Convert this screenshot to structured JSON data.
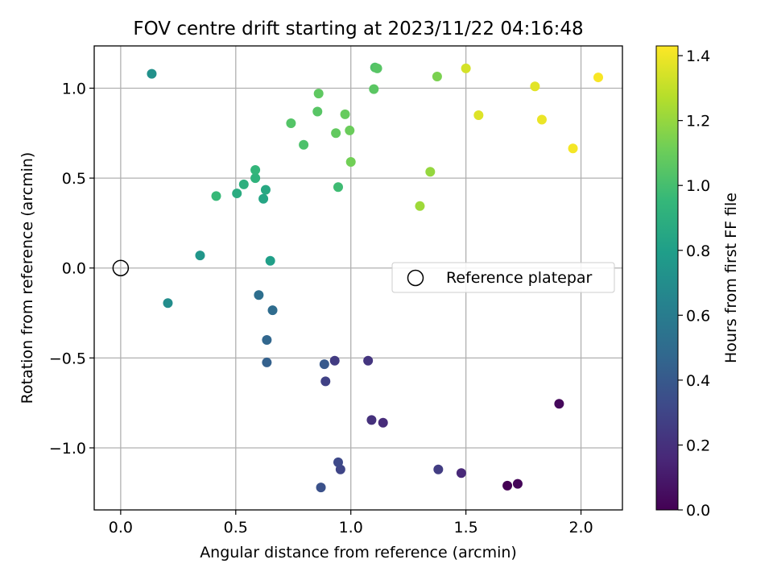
{
  "chart_data": {
    "type": "scatter",
    "title": "FOV centre drift starting at 2023/11/22 04:16:48",
    "xlabel": "Angular distance from reference (arcmin)",
    "ylabel": "Rotation from reference (arcmin)",
    "xlim": [
      -0.115,
      2.18
    ],
    "ylim": [
      -1.345,
      1.235
    ],
    "xticks": [
      0.0,
      0.5,
      1.0,
      1.5,
      2.0
    ],
    "xtick_labels": [
      "0.0",
      "0.5",
      "1.0",
      "1.5",
      "2.0"
    ],
    "yticks": [
      -1.0,
      -0.5,
      0.0,
      0.5,
      1.0
    ],
    "ytick_labels": [
      "−1.0",
      "−0.5",
      "0.0",
      "0.5",
      "1.0"
    ],
    "grid": true,
    "colormap": "viridis",
    "colorbar": {
      "label": "Hours from first FF file",
      "range": [
        0.0,
        1.43
      ],
      "ticks": [
        0.0,
        0.2,
        0.4,
        0.6,
        0.8,
        1.0,
        1.2,
        1.4
      ],
      "tick_labels": [
        "0.0",
        "0.2",
        "0.4",
        "0.6",
        "0.8",
        "1.0",
        "1.2",
        "1.4"
      ]
    },
    "legend": {
      "placement": "right",
      "entries": [
        "Reference platepar"
      ]
    },
    "reference_point": {
      "x": 0.0,
      "y": 0.0
    },
    "series": [
      {
        "points": [
          {
            "x": 1.68,
            "y": -1.21,
            "c": 0.0
          },
          {
            "x": 1.725,
            "y": -1.2,
            "c": 0.02
          },
          {
            "x": 1.905,
            "y": -0.755,
            "c": 0.03
          },
          {
            "x": 1.48,
            "y": -1.14,
            "c": 0.16
          },
          {
            "x": 1.14,
            "y": -0.86,
            "c": 0.18
          },
          {
            "x": 1.09,
            "y": -0.845,
            "c": 0.2
          },
          {
            "x": 1.38,
            "y": -1.12,
            "c": 0.26
          },
          {
            "x": 1.075,
            "y": -0.515,
            "c": 0.22
          },
          {
            "x": 0.93,
            "y": -0.515,
            "c": 0.25
          },
          {
            "x": 0.89,
            "y": -0.63,
            "c": 0.28
          },
          {
            "x": 0.955,
            "y": -1.12,
            "c": 0.3
          },
          {
            "x": 0.945,
            "y": -1.08,
            "c": 0.32
          },
          {
            "x": 0.87,
            "y": -1.22,
            "c": 0.36
          },
          {
            "x": 0.885,
            "y": -0.535,
            "c": 0.4
          },
          {
            "x": 0.635,
            "y": -0.525,
            "c": 0.44
          },
          {
            "x": 0.635,
            "y": -0.4,
            "c": 0.47
          },
          {
            "x": 0.66,
            "y": -0.235,
            "c": 0.5
          },
          {
            "x": 0.6,
            "y": -0.15,
            "c": 0.52
          },
          {
            "x": 0.205,
            "y": -0.195,
            "c": 0.7
          },
          {
            "x": 0.345,
            "y": 0.07,
            "c": 0.75
          },
          {
            "x": 0.65,
            "y": 0.04,
            "c": 0.8
          },
          {
            "x": 0.135,
            "y": 1.08,
            "c": 0.72
          },
          {
            "x": 0.62,
            "y": 0.385,
            "c": 0.84
          },
          {
            "x": 0.63,
            "y": 0.435,
            "c": 0.86
          },
          {
            "x": 0.505,
            "y": 0.415,
            "c": 0.88
          },
          {
            "x": 0.535,
            "y": 0.465,
            "c": 0.9
          },
          {
            "x": 0.585,
            "y": 0.5,
            "c": 0.92
          },
          {
            "x": 0.585,
            "y": 0.545,
            "c": 0.94
          },
          {
            "x": 0.415,
            "y": 0.4,
            "c": 0.96
          },
          {
            "x": 0.945,
            "y": 0.45,
            "c": 0.98
          },
          {
            "x": 0.795,
            "y": 0.685,
            "c": 1.02
          },
          {
            "x": 0.74,
            "y": 0.805,
            "c": 1.04
          },
          {
            "x": 0.855,
            "y": 0.87,
            "c": 1.05
          },
          {
            "x": 0.86,
            "y": 0.97,
            "c": 1.07
          },
          {
            "x": 0.935,
            "y": 0.75,
            "c": 1.08
          },
          {
            "x": 0.975,
            "y": 0.855,
            "c": 1.09
          },
          {
            "x": 0.995,
            "y": 0.765,
            "c": 1.1
          },
          {
            "x": 1.1,
            "y": 0.995,
            "c": 1.06
          },
          {
            "x": 1.105,
            "y": 1.115,
            "c": 1.03
          },
          {
            "x": 1.115,
            "y": 1.11,
            "c": 1.05
          },
          {
            "x": 1.0,
            "y": 0.59,
            "c": 1.12
          },
          {
            "x": 1.375,
            "y": 1.065,
            "c": 1.14
          },
          {
            "x": 1.345,
            "y": 0.535,
            "c": 1.2
          },
          {
            "x": 1.3,
            "y": 0.345,
            "c": 1.22
          },
          {
            "x": 1.5,
            "y": 1.11,
            "c": 1.34
          },
          {
            "x": 1.555,
            "y": 0.85,
            "c": 1.36
          },
          {
            "x": 1.8,
            "y": 1.01,
            "c": 1.37
          },
          {
            "x": 1.83,
            "y": 0.825,
            "c": 1.39
          },
          {
            "x": 1.965,
            "y": 0.665,
            "c": 1.41
          },
          {
            "x": 2.075,
            "y": 1.06,
            "c": 1.42
          }
        ]
      }
    ]
  }
}
